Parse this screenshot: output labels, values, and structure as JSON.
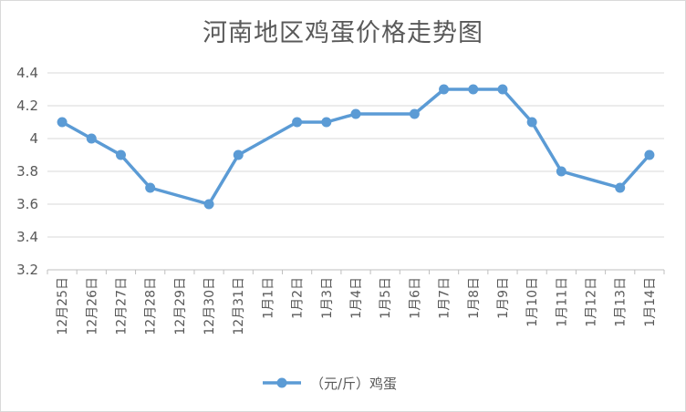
{
  "chart_data": {
    "type": "line",
    "title": "河南地区鸡蛋价格走势图",
    "categories": [
      "12月25日",
      "12月26日",
      "12月27日",
      "12月28日",
      "12月29日",
      "12月30日",
      "12月31日",
      "1月1日",
      "1月2日",
      "1月3日",
      "1月4日",
      "1月5日",
      "1月6日",
      "1月7日",
      "1月8日",
      "1月9日",
      "1月10日",
      "1月11日",
      "1月12日",
      "1月13日",
      "1月14日"
    ],
    "series": [
      {
        "name": "（元/斤）鸡蛋",
        "values": [
          4.1,
          4.0,
          3.9,
          3.7,
          null,
          3.6,
          3.9,
          null,
          4.1,
          4.1,
          4.15,
          null,
          4.15,
          4.3,
          4.3,
          4.3,
          4.1,
          3.8,
          null,
          3.7,
          3.9
        ],
        "color": "#5b9bd5"
      }
    ],
    "y_ticks": [
      "3.2",
      "3.4",
      "3.6",
      "3.8",
      "4",
      "4.2",
      "4.4"
    ],
    "ylim": [
      3.2,
      4.4
    ],
    "grid": true,
    "legend": "bottom"
  }
}
